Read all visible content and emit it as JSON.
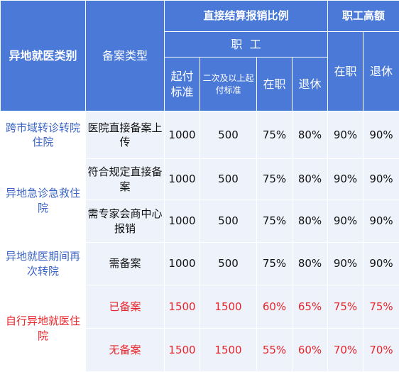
{
  "header": {
    "category": "异地就医类别",
    "record_type": "备案类型",
    "direct_ratio_group": "直接结算报销比例",
    "employee_group": "职  工",
    "high_limit_group": "职工高额",
    "start_std": "起付标准",
    "second_start_std": "二次及以上起付标准",
    "in_service": "在职",
    "retired": "退休",
    "high_in_service": "在职",
    "high_retired": "退休"
  },
  "groups": [
    {
      "category": "跨市域转诊转院住院",
      "red": false,
      "rows": [
        {
          "type": "医院直接备案上传",
          "start": "1000",
          "second": "500",
          "in_service": "75%",
          "retired": "80%",
          "high_in": "90%",
          "high_ret": "90%"
        }
      ]
    },
    {
      "category": "异地急诊急救住院",
      "red": false,
      "rows": [
        {
          "type": "符合规定直接备案",
          "start": "1000",
          "second": "500",
          "in_service": "75%",
          "retired": "80%",
          "high_in": "90%",
          "high_ret": "90%"
        },
        {
          "type": "需专家会商中心报销",
          "start": "1000",
          "second": "500",
          "in_service": "75%",
          "retired": "80%",
          "high_in": "90%",
          "high_ret": "90%"
        }
      ]
    },
    {
      "category": "异地就医期间再次转院",
      "red": false,
      "rows": [
        {
          "type": "需备案",
          "start": "1000",
          "second": "500",
          "in_service": "75%",
          "retired": "80%",
          "high_in": "90%",
          "high_ret": "90%"
        }
      ]
    },
    {
      "category": "自行异地就医住院",
      "red": true,
      "rows": [
        {
          "type": "已备案",
          "start": "1500",
          "second": "1500",
          "in_service": "60%",
          "retired": "65%",
          "high_in": "75%",
          "high_ret": "75%"
        },
        {
          "type": "无备案",
          "start": "1500",
          "second": "1500",
          "in_service": "55%",
          "retired": "60%",
          "high_in": "70%",
          "high_ret": "70%"
        }
      ]
    }
  ],
  "colors": {
    "header_bg": "#4a79d8",
    "body_bg": "#eef2fb",
    "category_text": "#3a63c4",
    "highlight_red": "#e8252b"
  }
}
